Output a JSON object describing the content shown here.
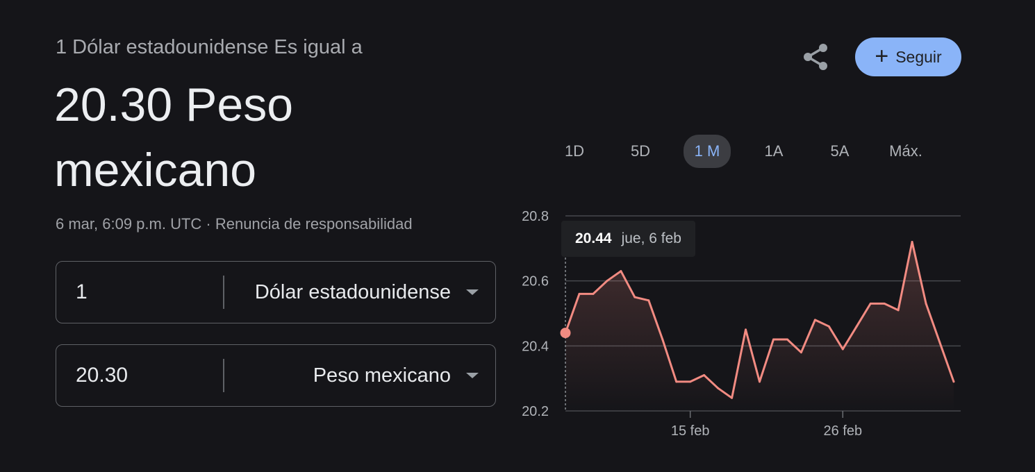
{
  "header": {
    "subtitle": "1 Dólar estadounidense Es igual a",
    "value": "20.30 Peso mexicano",
    "meta": "6 mar, 6:09 p.m. UTC · Renuncia de responsabilidad"
  },
  "actions": {
    "share_icon": "share-icon",
    "follow_label": "Seguir",
    "follow_icon": "+",
    "follow_color": "#8ab4f8"
  },
  "converter": {
    "from": {
      "amount": "1",
      "currency": "Dólar estadounidense"
    },
    "to": {
      "amount": "20.30",
      "currency": "Peso mexicano"
    }
  },
  "ranges": {
    "tabs": [
      "1D",
      "5D",
      "1 M",
      "1A",
      "5A",
      "Máx."
    ],
    "selected": "1 M"
  },
  "tooltip": {
    "value": "20.44",
    "date": "jue, 6 feb"
  },
  "chart_data": {
    "type": "area",
    "title": "",
    "xlabel": "",
    "ylabel": "",
    "ylim": [
      20.2,
      20.8
    ],
    "yticks": [
      "20.8",
      "20.6",
      "20.4",
      "20.2"
    ],
    "xticks": [
      {
        "label": "15 feb",
        "day": 15
      },
      {
        "label": "26 feb",
        "day": 26
      }
    ],
    "line_color": "#f28b82",
    "grid": true,
    "series": [
      {
        "x": [
          6,
          7,
          8,
          9,
          10,
          11,
          12,
          13,
          14,
          15,
          16,
          17,
          18,
          19,
          20,
          21,
          22,
          23,
          24,
          25,
          26,
          27,
          28,
          29,
          30,
          31,
          32,
          33,
          34
        ],
        "y": [
          20.44,
          20.56,
          20.56,
          20.6,
          20.63,
          20.55,
          20.54,
          20.42,
          20.29,
          20.29,
          20.31,
          20.27,
          20.24,
          20.45,
          20.29,
          20.42,
          20.42,
          20.38,
          20.48,
          20.46,
          20.39,
          20.46,
          20.53,
          20.53,
          20.51,
          20.72,
          20.53,
          20.41,
          20.29
        ]
      }
    ]
  }
}
